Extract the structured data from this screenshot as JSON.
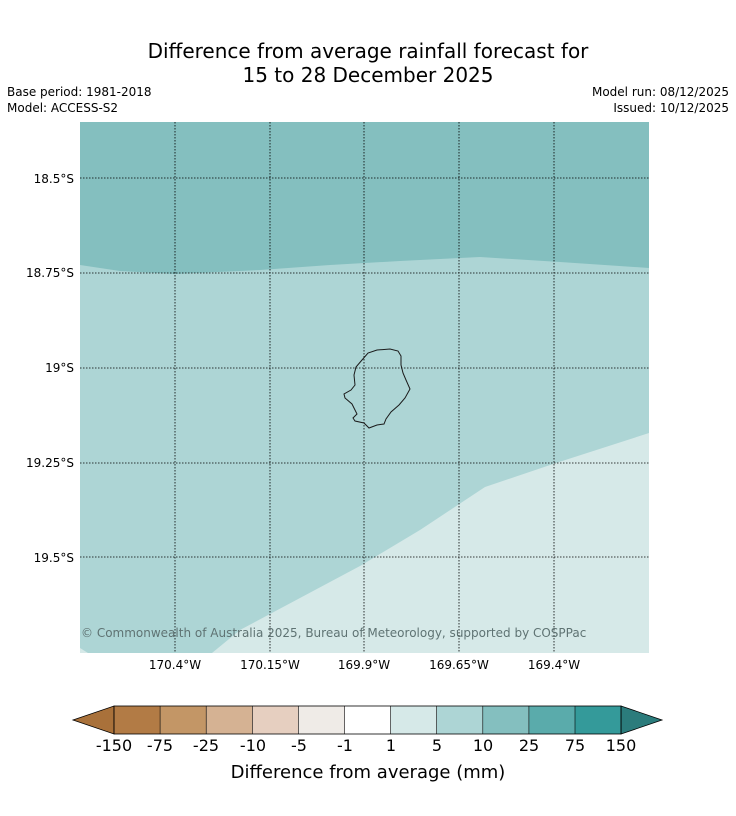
{
  "header": {
    "title_line1": "Difference from average rainfall forecast for",
    "title_line2": "15 to 28 December 2025",
    "base_period": "Base period: 1981-2018",
    "model": "Model: ACCESS-S2",
    "model_run": "Model run: 08/12/2025",
    "issued": "Issued: 10/12/2025"
  },
  "map": {
    "latitude_labels": [
      "18.5°S",
      "18.75°S",
      "19°S",
      "19.25°S",
      "19.5°S"
    ],
    "longitude_labels": [
      "170.4°W",
      "170.15°W",
      "169.9°W",
      "169.65°W",
      "169.4°W"
    ],
    "copyright": "© Commonwealth of Australia 2025, Bureau of Meteorology, supported by COSPPac",
    "island_icon": "island-outline-icon",
    "colors": {
      "band_25_75": "#84bfbf",
      "band_10_25": "#add5d5",
      "band_5_10": "#d6e9e8"
    }
  },
  "colorbar": {
    "label": "Difference from average (mm)",
    "ticks": [
      "-150",
      "-75",
      "-25",
      "-10",
      "-5",
      "-1",
      "1",
      "5",
      "10",
      "25",
      "75",
      "150"
    ],
    "colors": [
      "#a9713a",
      "#b27b45",
      "#c39666",
      "#d5b293",
      "#e6cfc0",
      "#efebe7",
      "#ffffff",
      "#d6e9e8",
      "#add5d5",
      "#84bfbf",
      "#5aabab",
      "#349a9a",
      "#2b7c7c"
    ]
  }
}
